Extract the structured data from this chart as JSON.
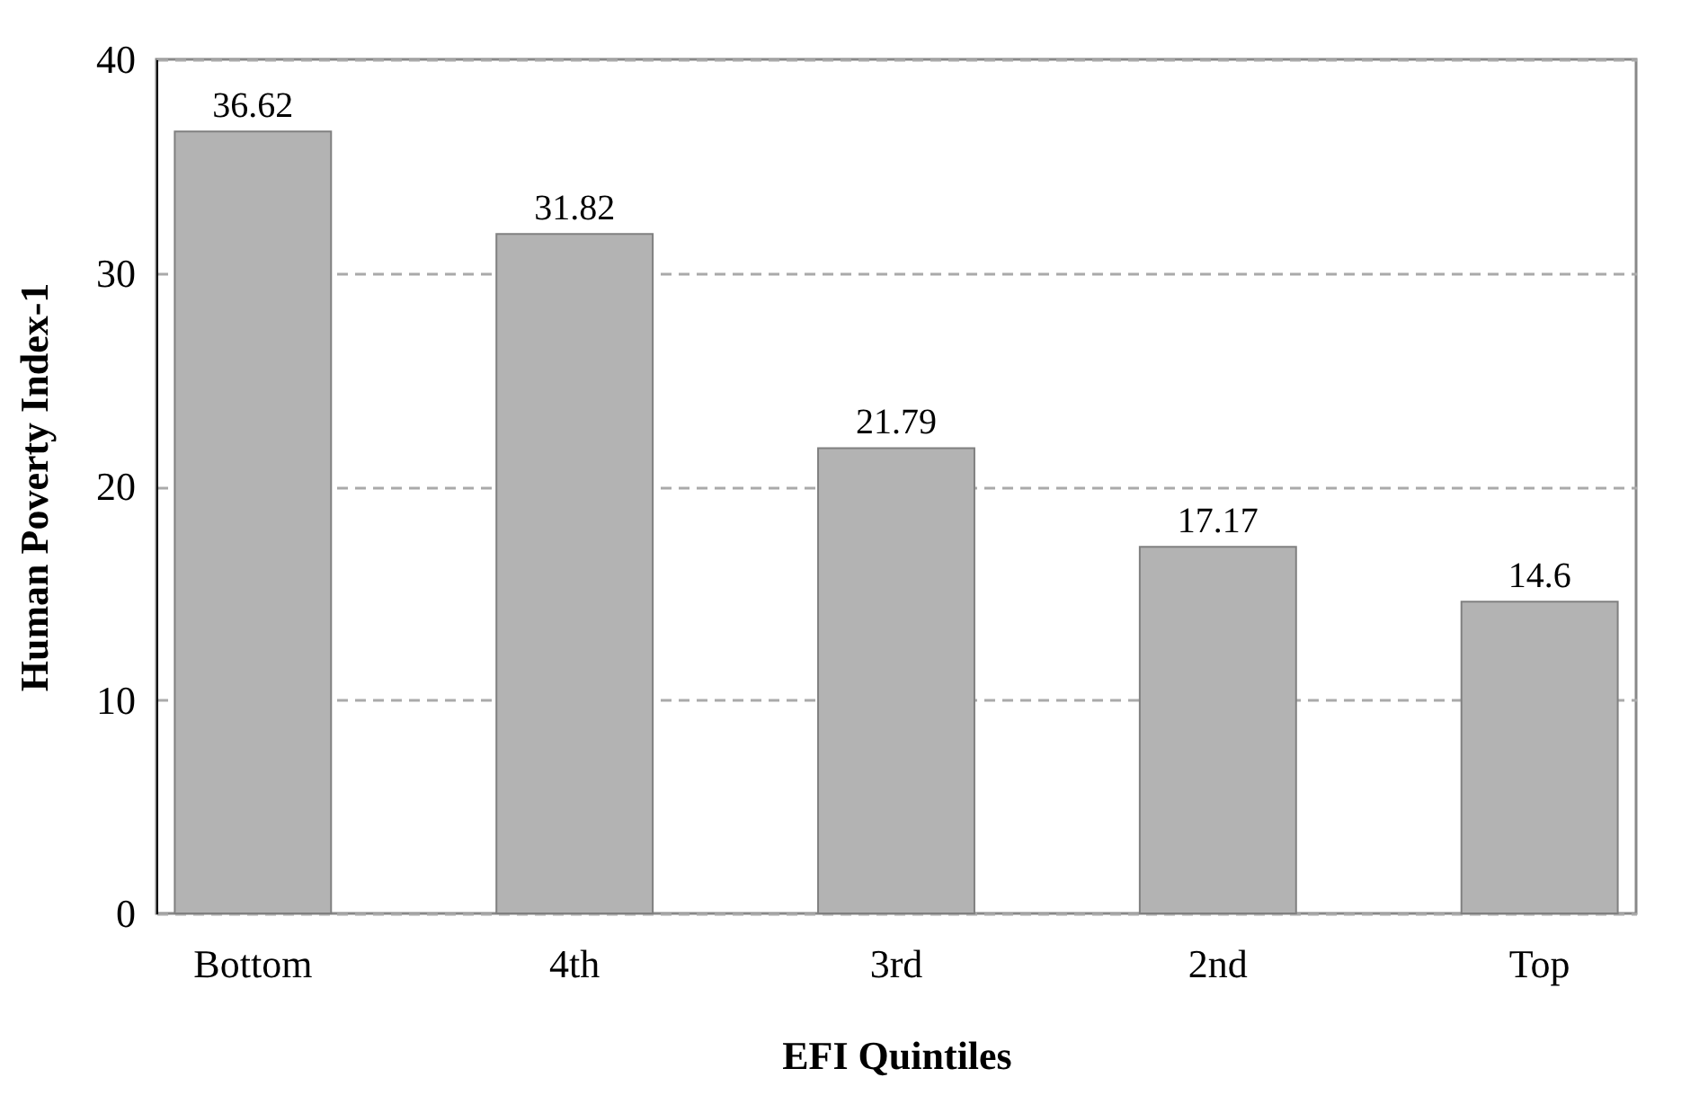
{
  "chart_data": {
    "type": "bar",
    "xlabel": "EFI Quintiles",
    "ylabel": "Human Poverty Index-1",
    "categories": [
      "Bottom",
      "4th",
      "3rd",
      "2nd",
      "Top"
    ],
    "values": [
      36.62,
      31.82,
      21.79,
      17.17,
      14.6
    ],
    "color": "#b3b3b3",
    "ylim": [
      0,
      40
    ],
    "yticks": [
      0,
      10,
      20,
      30,
      40
    ],
    "grid": "y",
    "data_labels": true
  }
}
